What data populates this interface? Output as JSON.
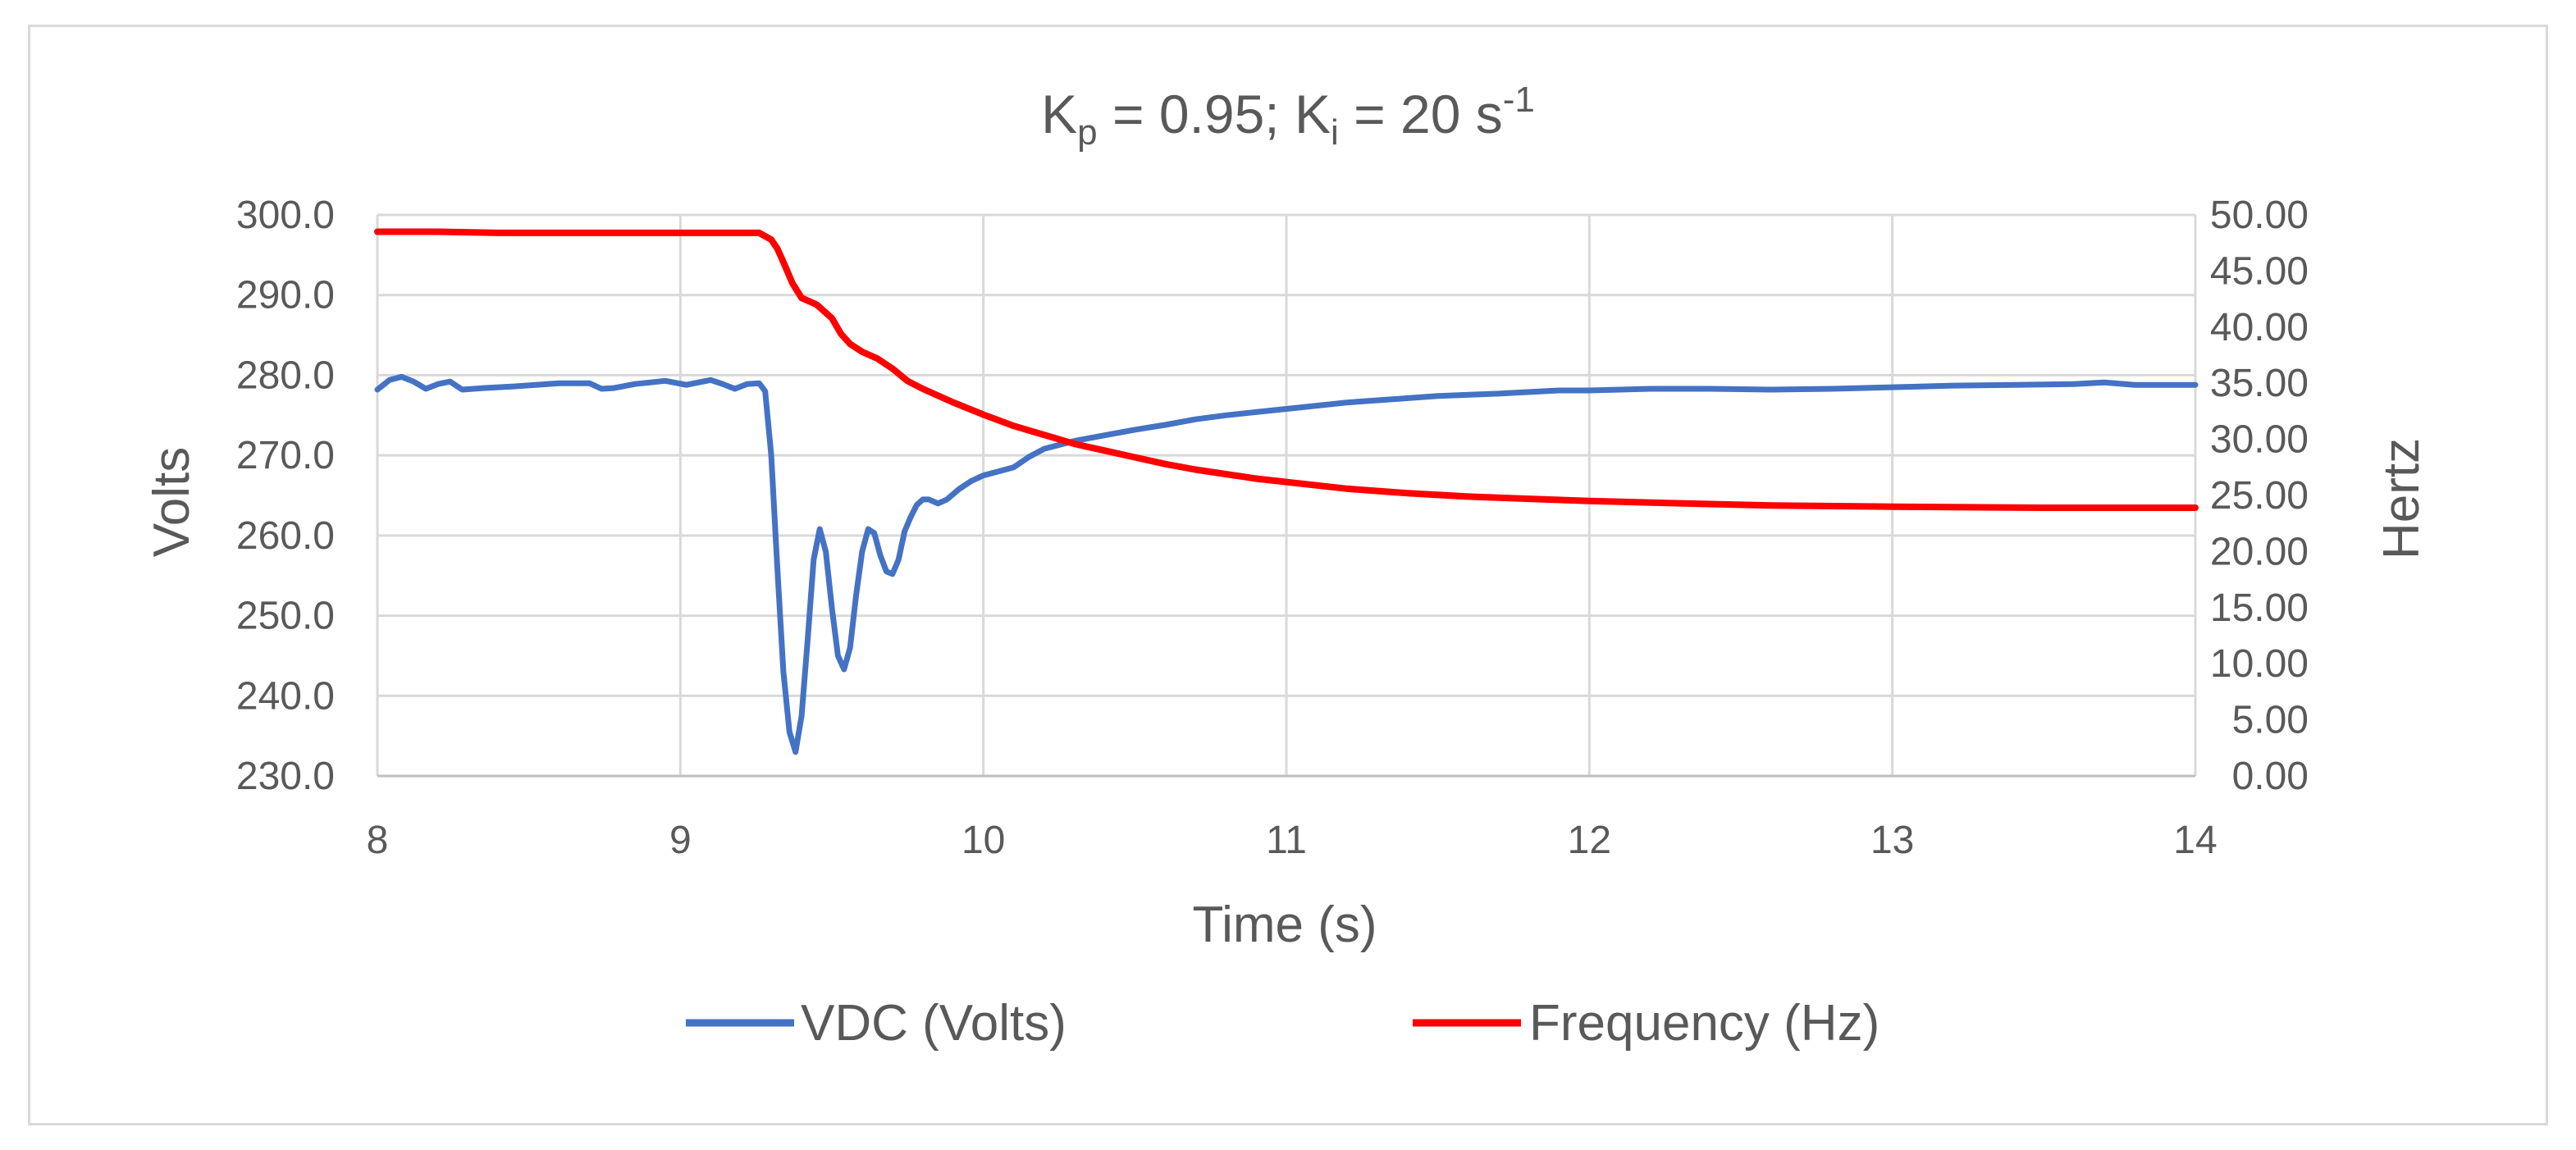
{
  "chart_data": {
    "type": "line",
    "title": {
      "parts": [
        {
          "text": "K",
          "shift": "none"
        },
        {
          "text": "p",
          "shift": "sub"
        },
        {
          "text": " = 0.95; K",
          "shift": "none"
        },
        {
          "text": "i",
          "shift": "sub"
        },
        {
          "text": " = 20 s",
          "shift": "none"
        },
        {
          "text": "-1",
          "shift": "super"
        }
      ]
    },
    "xlabel": "Time (s)",
    "ylabel": "Volts",
    "y2label": "Hertz",
    "xlim": [
      8,
      14
    ],
    "ylim": [
      230,
      300
    ],
    "y2lim": [
      0,
      50
    ],
    "x_ticks": [
      "8",
      "9",
      "10",
      "11",
      "12",
      "13",
      "14"
    ],
    "y_ticks": [
      "230.0",
      "240.0",
      "250.0",
      "260.0",
      "270.0",
      "280.0",
      "290.0",
      "300.0"
    ],
    "y2_ticks": [
      "0.00",
      "5.00",
      "10.00",
      "15.00",
      "20.00",
      "25.00",
      "30.00",
      "35.00",
      "40.00",
      "45.00",
      "50.00"
    ],
    "grid": true,
    "legend_position": "bottom",
    "series": [
      {
        "name": "VDC (Volts)",
        "axis": "left",
        "color": "#4472c4",
        "x": [
          8.0,
          8.04,
          8.08,
          8.12,
          8.16,
          8.2,
          8.24,
          8.28,
          8.35,
          8.45,
          8.6,
          8.7,
          8.74,
          8.78,
          8.85,
          8.95,
          9.02,
          9.06,
          9.1,
          9.14,
          9.18,
          9.22,
          9.26,
          9.28,
          9.3,
          9.32,
          9.34,
          9.36,
          9.38,
          9.4,
          9.42,
          9.44,
          9.46,
          9.48,
          9.5,
          9.52,
          9.54,
          9.56,
          9.58,
          9.6,
          9.62,
          9.64,
          9.66,
          9.68,
          9.7,
          9.72,
          9.74,
          9.76,
          9.78,
          9.8,
          9.82,
          9.85,
          9.88,
          9.92,
          9.96,
          10.0,
          10.05,
          10.1,
          10.15,
          10.2,
          10.3,
          10.4,
          10.5,
          10.6,
          10.7,
          10.8,
          10.9,
          11.0,
          11.1,
          11.2,
          11.35,
          11.5,
          11.7,
          11.9,
          12.0,
          12.2,
          12.4,
          12.6,
          12.8,
          13.0,
          13.2,
          13.4,
          13.6,
          13.7,
          13.8,
          14.0
        ],
        "values": [
          278.2,
          279.4,
          279.8,
          279.2,
          278.3,
          278.9,
          279.2,
          278.2,
          278.4,
          278.6,
          279.0,
          279.0,
          278.3,
          278.4,
          278.9,
          279.3,
          278.8,
          279.1,
          279.4,
          278.9,
          278.3,
          278.9,
          279.0,
          278.0,
          270.0,
          256.0,
          243.0,
          235.5,
          233.0,
          237.5,
          247.0,
          257.0,
          260.8,
          258.0,
          251.0,
          245.0,
          243.3,
          246.0,
          252.5,
          258.0,
          260.8,
          260.3,
          257.5,
          255.5,
          255.2,
          257.0,
          260.5,
          262.3,
          263.8,
          264.5,
          264.5,
          264.0,
          264.5,
          265.8,
          266.8,
          267.5,
          268.0,
          268.5,
          269.8,
          270.8,
          271.8,
          272.5,
          273.2,
          273.8,
          274.5,
          275.0,
          275.4,
          275.8,
          276.2,
          276.6,
          277.0,
          277.4,
          277.7,
          278.1,
          278.1,
          278.3,
          278.3,
          278.2,
          278.3,
          278.5,
          278.7,
          278.8,
          278.9,
          279.1,
          278.8,
          278.8
        ]
      },
      {
        "name": "Frequency (Hz)",
        "axis": "right",
        "color": "#ff0000",
        "x": [
          8.0,
          8.2,
          8.4,
          9.0,
          9.2,
          9.26,
          9.3,
          9.32,
          9.34,
          9.37,
          9.4,
          9.45,
          9.5,
          9.53,
          9.56,
          9.6,
          9.65,
          9.7,
          9.75,
          9.8,
          9.9,
          10.0,
          10.1,
          10.2,
          10.3,
          10.4,
          10.5,
          10.6,
          10.7,
          10.8,
          10.9,
          11.0,
          11.2,
          11.4,
          11.6,
          11.8,
          12.0,
          12.3,
          12.6,
          13.0,
          13.5,
          14.0
        ],
        "values": [
          48.5,
          48.5,
          48.4,
          48.4,
          48.4,
          48.4,
          47.8,
          47.0,
          45.8,
          43.9,
          42.6,
          42.0,
          40.8,
          39.4,
          38.5,
          37.8,
          37.2,
          36.3,
          35.2,
          34.5,
          33.3,
          32.2,
          31.2,
          30.4,
          29.6,
          29.0,
          28.4,
          27.8,
          27.3,
          26.9,
          26.5,
          26.2,
          25.6,
          25.2,
          24.9,
          24.7,
          24.5,
          24.3,
          24.1,
          24.0,
          23.9,
          23.9
        ]
      }
    ]
  }
}
